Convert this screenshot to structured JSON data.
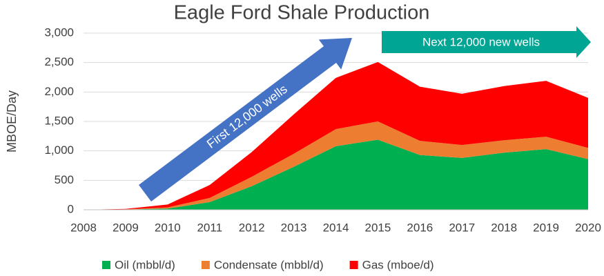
{
  "chart_data": {
    "type": "stacked_area",
    "title": "Eagle Ford Shale Production",
    "y_label": "MBOE/Day",
    "categories": [
      "2008",
      "2009",
      "2010",
      "2011",
      "2012",
      "2013",
      "2014",
      "2015",
      "2016",
      "2017",
      "2018",
      "2019",
      "2020"
    ],
    "series": [
      {
        "name": "Oil (mbbl/d)",
        "color": "#00b050",
        "values": [
          0,
          5,
          20,
          130,
          400,
          730,
          1080,
          1190,
          930,
          880,
          970,
          1030,
          860
        ]
      },
      {
        "name": "Condensate (mbbl/d)",
        "color": "#ed7d31",
        "values": [
          0,
          3,
          20,
          70,
          160,
          220,
          290,
          310,
          240,
          220,
          210,
          210,
          190
        ]
      },
      {
        "name": "Gas (mboe/d)",
        "color": "#ff0000",
        "values": [
          0,
          7,
          50,
          220,
          420,
          670,
          870,
          1010,
          920,
          870,
          920,
          950,
          850
        ]
      }
    ],
    "ylim": [
      0,
      3000
    ],
    "yticks": [
      0,
      500,
      {
        "value": 1000,
        "label": "1,000"
      },
      {
        "value": 1500,
        "label": "1,500"
      },
      {
        "value": 2000,
        "label": "2,000"
      },
      {
        "value": 2500,
        "label": "2,500"
      },
      {
        "value": 3000,
        "label": "3,000"
      }
    ],
    "grid": true,
    "legend": "bottom",
    "annotations": [
      "First 12,000 wells",
      "Next 12,000 new wells"
    ]
  }
}
